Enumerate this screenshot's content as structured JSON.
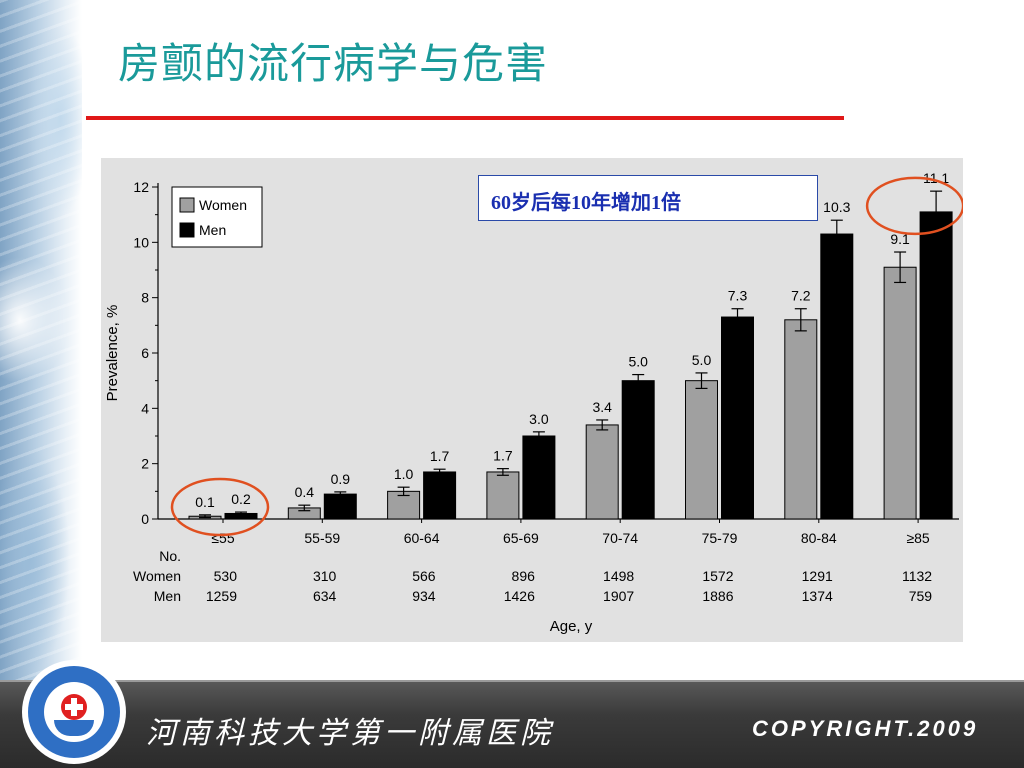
{
  "slide": {
    "title": "房颤的流行病学与危害",
    "note": "60岁后每10年增加1倍",
    "footer": {
      "hospital": "河南科技大学第一附属医院",
      "copyright": "COPYRIGHT.2009"
    },
    "colors": {
      "title": "#1a9a9a",
      "rule": "#e01818",
      "highlight_circle": "#e05020",
      "note_text": "#1a2fb0",
      "women_bar": "#a0a0a0",
      "men_bar": "#000000"
    }
  },
  "chart_data": {
    "type": "bar",
    "categories": [
      "≤55",
      "55-59",
      "60-64",
      "65-69",
      "70-74",
      "75-79",
      "80-84",
      "≥85"
    ],
    "series": [
      {
        "name": "Women",
        "values": [
          0.1,
          0.4,
          1.0,
          1.7,
          3.4,
          5.0,
          7.2,
          9.1
        ],
        "errors": [
          0.05,
          0.1,
          0.15,
          0.12,
          0.18,
          0.28,
          0.4,
          0.55
        ],
        "color": "#a0a0a0"
      },
      {
        "name": "Men",
        "values": [
          0.2,
          0.9,
          1.7,
          3.0,
          5.0,
          7.3,
          10.3,
          11.1
        ],
        "errors": [
          0.05,
          0.08,
          0.1,
          0.15,
          0.22,
          0.3,
          0.5,
          0.75
        ],
        "color": "#000000"
      }
    ],
    "value_labels": {
      "Women": [
        "0.1",
        "0.4",
        "1.0",
        "1.7",
        "3.4",
        "5.0",
        "7.2",
        "9.1"
      ],
      "Men": [
        "0.2",
        "0.9",
        "1.7",
        "3.0",
        "5.0",
        "7.3",
        "10.3",
        "11.1"
      ]
    },
    "ylabel": "Prevalence, %",
    "xlabel": "Age, y",
    "ylim": [
      0,
      12
    ],
    "yticks": [
      0,
      2,
      4,
      6,
      8,
      10,
      12
    ],
    "legend": {
      "placement": "top-left",
      "entries": [
        "Women",
        "Men"
      ]
    },
    "counts": {
      "header": "No.",
      "rows": [
        {
          "label": "Women",
          "values": [
            "530",
            "310",
            "566",
            "896",
            "1498",
            "1572",
            "1291",
            "1132"
          ]
        },
        {
          "label": "Men",
          "values": [
            "1259",
            "634",
            "934",
            "1426",
            "1907",
            "1886",
            "1374",
            "759"
          ]
        }
      ]
    },
    "highlighted_categories": [
      "≤55",
      "≥85"
    ]
  }
}
